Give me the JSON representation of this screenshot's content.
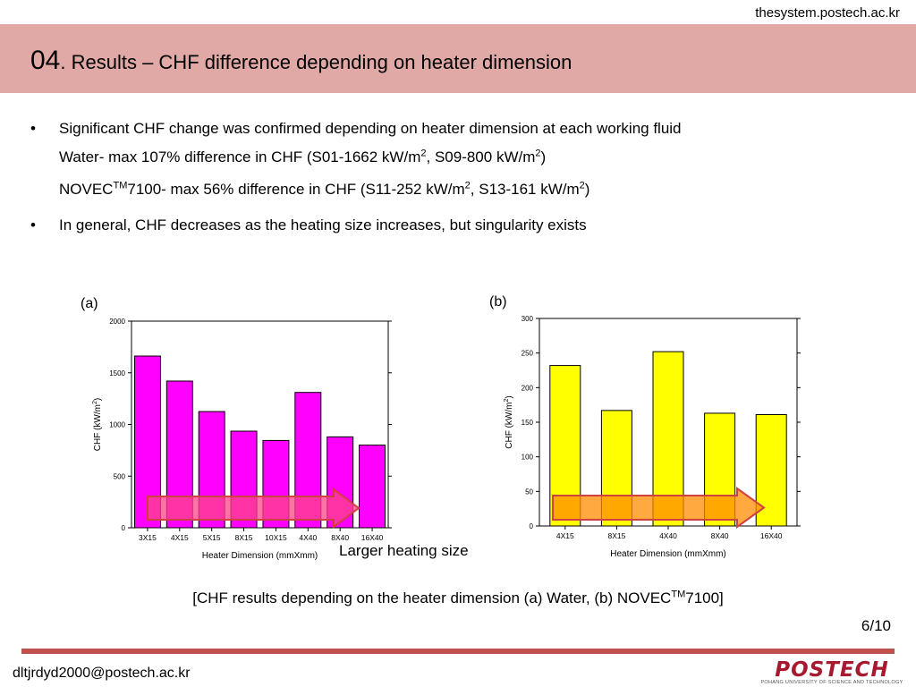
{
  "header": {
    "site_url": "thesystem.postech.ac.kr",
    "title_number": "04",
    "title_text": ". Results – CHF difference depending on heater dimension"
  },
  "bullets": {
    "item1": "Significant CHF change was confirmed depending on heater dimension at each working fluid",
    "water_line": {
      "part1": "Water- max 107% difference in CHF (S01-1662 kW/m",
      "sup1": "2",
      "part2": ", S09-800 kW/m",
      "sup2": "2",
      "part3": ")"
    },
    "novec_line": {
      "part0": "NOVEC",
      "sup0": "TM",
      "part1": "7100- max 56% difference in CHF (S11-252 kW/m",
      "sup1": "2",
      "part2": ", S13-161 kW/m",
      "sup2": "2",
      "part3": ")"
    },
    "item2": "In general, CHF decreases as the heating size increases, but singularity exists",
    "marker": "•"
  },
  "chart_data": [
    {
      "type": "bar",
      "panel_label": "(a)",
      "categories": [
        "3X15",
        "4X15",
        "5X15",
        "8X15",
        "10X15",
        "4X40",
        "8X40",
        "16X40"
      ],
      "values": [
        1662,
        1420,
        1125,
        935,
        845,
        1310,
        880,
        800
      ],
      "xlabel": "Heater Dimension (mmXmm)",
      "ylabel_prefix": "CHF (kW/m",
      "ylabel_sup": "2",
      "ylabel_suffix": ")",
      "ylim": [
        0,
        2000
      ],
      "yticks": [
        0,
        500,
        1000,
        1500,
        2000
      ],
      "bar_color": "#ff00ff",
      "grid": false
    },
    {
      "type": "bar",
      "panel_label": "(b)",
      "categories": [
        "4X15",
        "8X15",
        "4X40",
        "8X40",
        "16X40"
      ],
      "values": [
        232,
        167,
        252,
        163,
        161
      ],
      "xlabel": "Heater Dimension (mmXmm)",
      "ylabel_prefix": "CHF (kW/m",
      "ylabel_sup": "2",
      "ylabel_suffix": ")",
      "ylim": [
        0,
        300
      ],
      "yticks": [
        0,
        50,
        100,
        150,
        200,
        250,
        300
      ],
      "bar_color": "#ffff00",
      "grid": false
    }
  ],
  "arrows": {
    "a_color": "#ff4488",
    "b_color": "#ff8c00",
    "note": "Larger heating size"
  },
  "caption": {
    "part1": "[CHF results depending on the heater dimension (a) Water, (b) NOVEC",
    "sup": "TM",
    "part2": "7100]"
  },
  "footer": {
    "page_number": "6/10",
    "email": "dltjrdyd2000@postech.ac.kr",
    "logo_text": "POSTECH",
    "logo_subtext": "POHANG UNIVERSITY OF SCIENCE AND TECHNOLOGY",
    "accent_color": "#c0504d"
  }
}
